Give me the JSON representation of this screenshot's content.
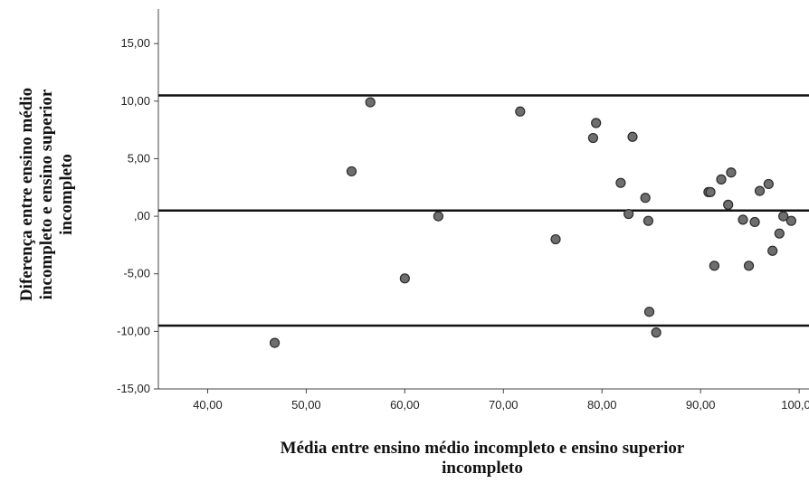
{
  "chart_data": {
    "type": "scatter",
    "title": "",
    "xlabel_lines": [
      "Média entre ensino médio incompleto e ensino superior",
      "incompleto"
    ],
    "ylabel_lines": [
      "Diferença entre ensino médio",
      "incompleto e ensino superior",
      "incompleto"
    ],
    "xlim": [
      35,
      101
    ],
    "ylim": [
      -15,
      18
    ],
    "xticks": [
      40,
      50,
      60,
      70,
      80,
      90,
      100
    ],
    "xtick_labels": [
      "40,00",
      "50,00",
      "60,00",
      "70,00",
      "80,00",
      "90,00",
      "100,00"
    ],
    "yticks": [
      -15,
      -10,
      -5,
      0,
      5,
      10,
      15
    ],
    "ytick_labels": [
      "-15,00",
      "-10,00",
      "-5,00",
      ",00",
      "5,00",
      "10,00",
      "15,00"
    ],
    "reference_lines": [
      10.5,
      0.5,
      -9.5
    ],
    "grid": false,
    "colors": {
      "point_fill": "#6e6e6e",
      "point_stroke": "#2b2b2b",
      "line": "#111111",
      "axis": "#444444"
    },
    "points": [
      {
        "x": 46.8,
        "y": -11.0
      },
      {
        "x": 54.6,
        "y": 3.9
      },
      {
        "x": 56.5,
        "y": 9.9
      },
      {
        "x": 60.0,
        "y": -5.4
      },
      {
        "x": 63.4,
        "y": 0.0
      },
      {
        "x": 71.7,
        "y": 9.1
      },
      {
        "x": 75.3,
        "y": -2.0
      },
      {
        "x": 79.1,
        "y": 6.8
      },
      {
        "x": 79.4,
        "y": 8.1
      },
      {
        "x": 81.9,
        "y": 2.9
      },
      {
        "x": 82.7,
        "y": 0.2
      },
      {
        "x": 83.1,
        "y": 6.9
      },
      {
        "x": 84.4,
        "y": 1.6
      },
      {
        "x": 84.7,
        "y": -0.4
      },
      {
        "x": 84.8,
        "y": -8.3
      },
      {
        "x": 85.5,
        "y": -10.1
      },
      {
        "x": 90.8,
        "y": 2.1
      },
      {
        "x": 91.0,
        "y": 2.1
      },
      {
        "x": 91.4,
        "y": -4.3
      },
      {
        "x": 92.1,
        "y": 3.2
      },
      {
        "x": 92.8,
        "y": 1.0
      },
      {
        "x": 93.1,
        "y": 3.8
      },
      {
        "x": 94.3,
        "y": -0.3
      },
      {
        "x": 94.9,
        "y": -4.3
      },
      {
        "x": 95.5,
        "y": -0.5
      },
      {
        "x": 96.0,
        "y": 2.2
      },
      {
        "x": 96.9,
        "y": 2.8
      },
      {
        "x": 97.3,
        "y": -3.0
      },
      {
        "x": 98.0,
        "y": -1.5
      },
      {
        "x": 98.4,
        "y": 0.0
      },
      {
        "x": 99.2,
        "y": -0.4
      }
    ]
  }
}
